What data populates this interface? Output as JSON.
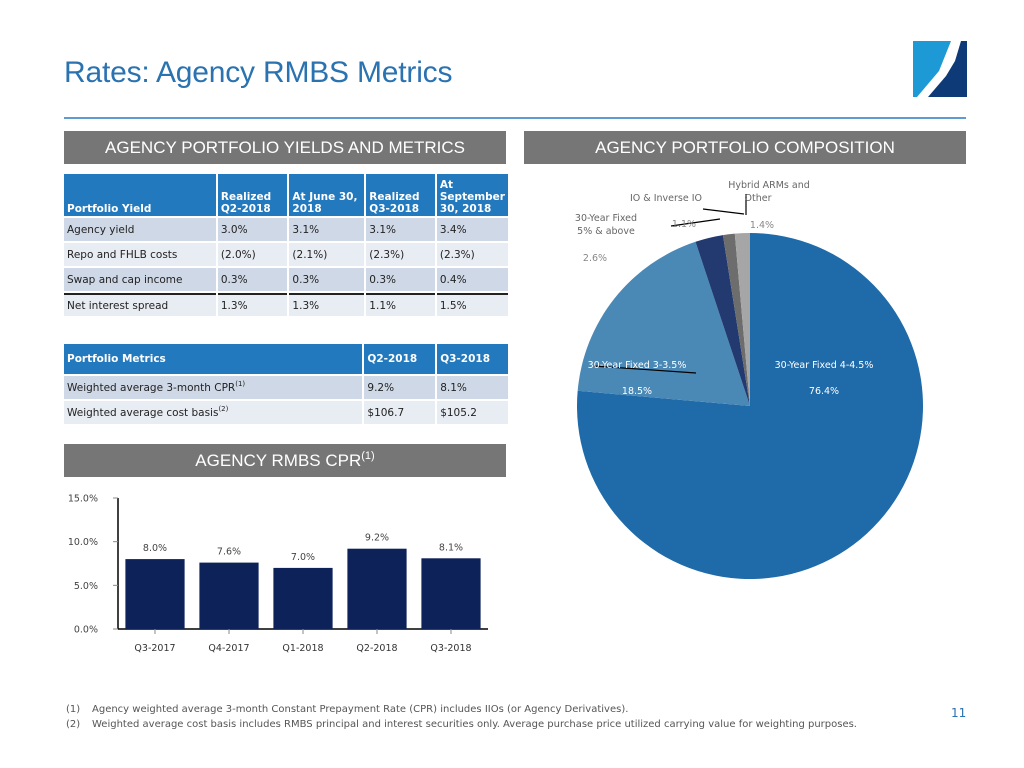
{
  "page": {
    "title": "Rates: Agency RMBS Metrics",
    "page_number": "11",
    "logo": "brand-logo-square",
    "colors": {
      "title": "#2a72b0",
      "section_bar": "#767676",
      "table_header": "#2379be",
      "bar": "#0d2259"
    }
  },
  "sections": {
    "yields": "AGENCY PORTFOLIO YIELDS AND METRICS",
    "composition": "AGENCY PORTFOLIO COMPOSITION",
    "cpr": "AGENCY RMBS CPR",
    "cpr_sup": "(1)"
  },
  "yield_table": {
    "headers": [
      "Portfolio Yield",
      "Realized Q2-2018",
      "At June 30, 2018",
      "Realized Q3-2018",
      "At September 30, 2018"
    ],
    "rows": [
      [
        "Agency yield",
        "3.0%",
        "3.1%",
        "3.1%",
        "3.4%"
      ],
      [
        "Repo and FHLB costs",
        "(2.0%)",
        "(2.1%)",
        "(2.3%)",
        "(2.3%)"
      ],
      [
        "Swap and cap income",
        "0.3%",
        "0.3%",
        "0.3%",
        "0.4%"
      ],
      [
        "Net interest spread",
        "1.3%",
        "1.3%",
        "1.1%",
        "1.5%"
      ]
    ]
  },
  "metrics_table": {
    "headers": [
      "Portfolio Metrics",
      "Q2-2018",
      "Q3-2018"
    ],
    "rows": [
      {
        "label": "Weighted average 3-month CPR",
        "sup": "(1)",
        "values": [
          "9.2%",
          "8.1%"
        ]
      },
      {
        "label": "Weighted average cost basis",
        "sup": "(2)",
        "values": [
          "$106.7",
          "$105.2"
        ]
      }
    ]
  },
  "footnotes": [
    {
      "num": "(1)",
      "text": "Agency weighted average 3-month Constant Prepayment Rate (CPR) includes IIOs (or Agency Derivatives)."
    },
    {
      "num": "(2)",
      "text": "Weighted average cost basis includes RMBS principal and interest securities only.  Average purchase price utilized carrying value for weighting purposes."
    }
  ],
  "chart_data": [
    {
      "type": "pie",
      "title": "AGENCY PORTFOLIO COMPOSITION",
      "slices": [
        {
          "label": "30-Year Fixed 4-4.5%",
          "value": 76.4,
          "value_label": "76.4%",
          "color": "#1f6aa8"
        },
        {
          "label": "30-Year Fixed 3-3.5%",
          "value": 18.5,
          "value_label": "18.5%",
          "color": "#4a88b6"
        },
        {
          "label": "30-Year Fixed 5% & above",
          "label_lines": [
            "30-Year Fixed",
            "5% & above"
          ],
          "value": 2.6,
          "value_label": "2.6%",
          "color": "#223a70"
        },
        {
          "label": "IO & Inverse IO",
          "label_lines": [
            "IO & Inverse IO"
          ],
          "value": 1.1,
          "value_label": "1.1%",
          "color": "#6d6d6d"
        },
        {
          "label": "Hybrid ARMs and Other",
          "label_lines": [
            "Hybrid ARMs and",
            "Other"
          ],
          "value": 1.4,
          "value_label": "1.4%",
          "color": "#a6a6a6"
        }
      ],
      "start": "12 o'clock",
      "direction": "clockwise"
    },
    {
      "type": "bar",
      "title": "AGENCY RMBS CPR(1)",
      "categories": [
        "Q3-2017",
        "Q4-2017",
        "Q1-2018",
        "Q2-2018",
        "Q3-2018"
      ],
      "values": [
        8.0,
        7.6,
        7.0,
        9.2,
        8.1
      ],
      "value_labels": [
        "8.0%",
        "7.6%",
        "7.0%",
        "9.2%",
        "8.1%"
      ],
      "ylim": [
        0,
        15
      ],
      "yticks": [
        0,
        5,
        10,
        15
      ],
      "ytick_labels": [
        "0.0%",
        "5.0%",
        "10.0%",
        "15.0%"
      ],
      "xlabel": "",
      "ylabel": "",
      "grid": false,
      "color": "#0d2259"
    }
  ]
}
